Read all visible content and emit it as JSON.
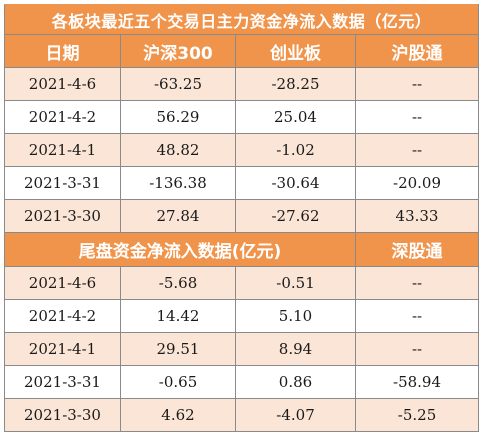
{
  "title": "各板块最近五个交易日主力资金净流入数据（亿元）",
  "columns": [
    "日期",
    "沪深300",
    "创业板",
    "沪股通"
  ],
  "section1_rows": [
    {
      "date": "2021-4-6",
      "hs300": "-63.25",
      "cyb": "-28.25",
      "connect": "--"
    },
    {
      "date": "2021-4-2",
      "hs300": "56.29",
      "cyb": "25.04",
      "connect": "--"
    },
    {
      "date": "2021-4-1",
      "hs300": "48.82",
      "cyb": "-1.02",
      "connect": "--"
    },
    {
      "date": "2021-3-31",
      "hs300": "-136.38",
      "cyb": "-30.64",
      "connect": "-20.09"
    },
    {
      "date": "2021-3-30",
      "hs300": "27.84",
      "cyb": "-27.62",
      "connect": "43.33"
    }
  ],
  "section2_label": "尾盘资金净流入数据(亿元)",
  "section2_connect_label": "深股通",
  "section2_rows": [
    {
      "date": "2021-4-6",
      "hs300": "-5.68",
      "cyb": "-0.51",
      "connect": "--"
    },
    {
      "date": "2021-4-2",
      "hs300": "14.42",
      "cyb": "5.10",
      "connect": "--"
    },
    {
      "date": "2021-4-1",
      "hs300": "29.51",
      "cyb": "8.94",
      "connect": "--"
    },
    {
      "date": "2021-3-31",
      "hs300": "-0.65",
      "cyb": "0.86",
      "connect": "-58.94"
    },
    {
      "date": "2021-3-30",
      "hs300": "4.62",
      "cyb": "-4.07",
      "connect": "-5.25"
    }
  ],
  "colors": {
    "header_bg": "#f0944c",
    "band_bg": "#fbe5d6",
    "header_text": "#ffffff"
  }
}
